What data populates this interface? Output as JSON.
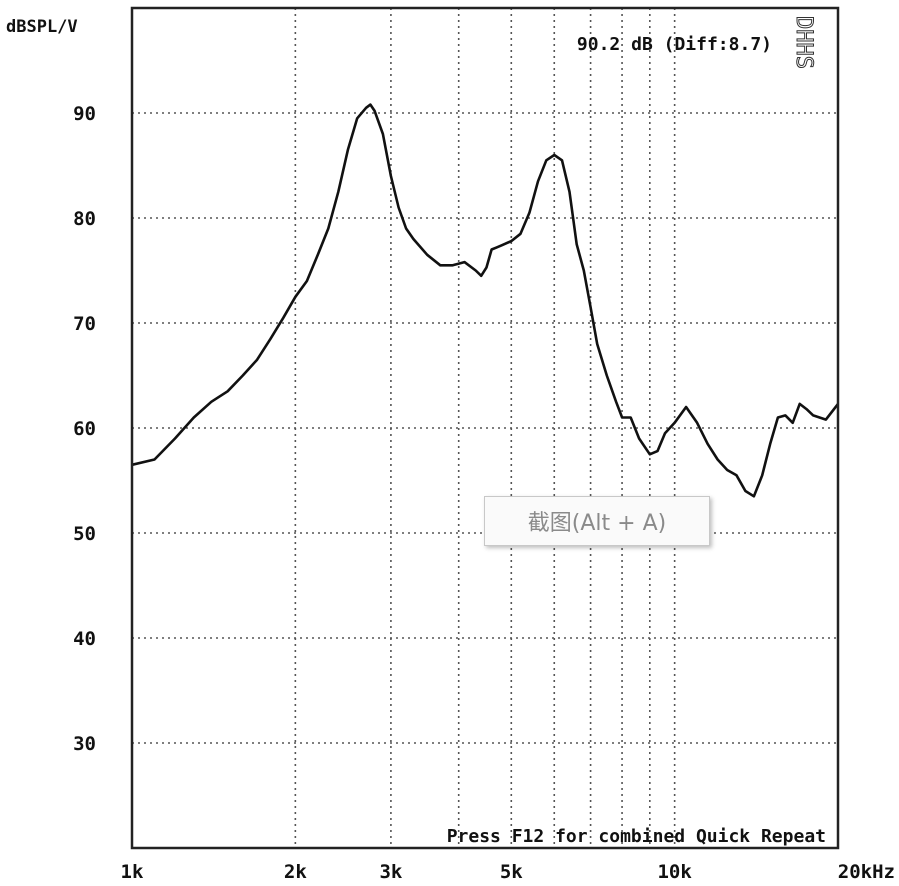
{
  "chart_data": {
    "type": "line",
    "y_axis_label": "dBSPL/V",
    "readout": "90.2 dB (Diff:8.7)",
    "brand": "DHHS",
    "prompt": "Press F12 for combined Quick Repeat",
    "xscale": "log",
    "xlim": [
      1000,
      20000
    ],
    "ylim": [
      20,
      100
    ],
    "grid": true,
    "x_ticks": [
      {
        "value": 1000,
        "label": "1k"
      },
      {
        "value": 2000,
        "label": "2k"
      },
      {
        "value": 3000,
        "label": "3k"
      },
      {
        "value": 5000,
        "label": "5k"
      },
      {
        "value": 10000,
        "label": "10k"
      },
      {
        "value": 20000,
        "label": "20kHz"
      }
    ],
    "x_gridlines": [
      2000,
      3000,
      4000,
      5000,
      6000,
      7000,
      8000,
      9000,
      10000
    ],
    "y_ticks": [
      30,
      40,
      50,
      60,
      70,
      80,
      90
    ],
    "series": [
      {
        "color": "#111111",
        "x": [
          1000,
          1100,
          1200,
          1300,
          1400,
          1500,
          1600,
          1700,
          1800,
          1900,
          2000,
          2100,
          2200,
          2300,
          2400,
          2500,
          2600,
          2700,
          2750,
          2800,
          2900,
          3000,
          3100,
          3200,
          3300,
          3500,
          3700,
          3900,
          4100,
          4300,
          4400,
          4500,
          4600,
          4700,
          4800,
          5000,
          5200,
          5400,
          5600,
          5800,
          6000,
          6200,
          6400,
          6500,
          6600,
          6800,
          7000,
          7200,
          7500,
          7800,
          8000,
          8300,
          8600,
          9000,
          9300,
          9600,
          10000,
          10500,
          11000,
          11500,
          12000,
          12500,
          13000,
          13500,
          14000,
          14500,
          15000,
          15500,
          16000,
          16500,
          17000,
          17500,
          18000,
          19000,
          20000
        ],
        "y": [
          56.5,
          57,
          59,
          61,
          62.5,
          63.5,
          65,
          66.5,
          68.5,
          70.5,
          72.5,
          74,
          76.5,
          79,
          82.5,
          86.5,
          89.5,
          90.5,
          90.8,
          90.2,
          88,
          84,
          81,
          79,
          78,
          76.5,
          75.5,
          75.5,
          75.8,
          75,
          74.5,
          75.3,
          77,
          77.2,
          77.4,
          77.8,
          78.5,
          80.5,
          83.5,
          85.5,
          86,
          85.5,
          82.5,
          80,
          77.5,
          75,
          71.5,
          68,
          65,
          62.5,
          61,
          61,
          59,
          57.5,
          57.8,
          59.5,
          60.5,
          62,
          60.5,
          58.5,
          57,
          56,
          55.5,
          54,
          53.5,
          55.5,
          58.5,
          61,
          61.2,
          60.5,
          62.3,
          61.8,
          61.2,
          60.8,
          62.3
        ]
      }
    ]
  },
  "tooltip": {
    "text": "截图(Alt + A)"
  }
}
